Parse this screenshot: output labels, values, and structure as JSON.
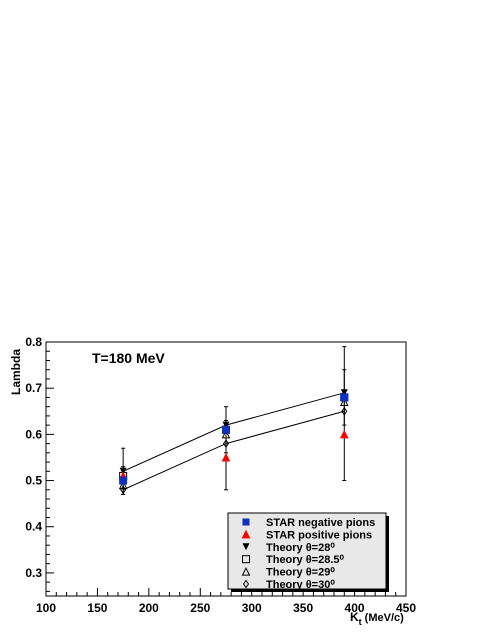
{
  "chart_data": {
    "type": "scatter",
    "annotation": "T=180 MeV",
    "ylabel": "Lambda",
    "xlabel_main": "K",
    "xlabel_sub": "t",
    "xlabel_unit": "(MeV/c)",
    "xlim": [
      100,
      450
    ],
    "ylim": [
      0.25,
      0.8
    ],
    "xticks": [
      "100",
      "150",
      "200",
      "250",
      "300",
      "350",
      "400",
      "450"
    ],
    "yticks": [
      "0.3",
      "0.4",
      "0.5",
      "0.6",
      "0.7",
      "0.8"
    ],
    "series": [
      {
        "name": "STAR negative pions",
        "marker": "square-filled",
        "color": "#1030c0",
        "x": [
          175,
          275,
          390
        ],
        "y": [
          0.5,
          0.61,
          0.68
        ],
        "yerr": [
          [
            0.03,
            0.05,
            0.06
          ],
          [
            0.03,
            0.05,
            0.06
          ]
        ]
      },
      {
        "name": "STAR positive pions",
        "marker": "triangle-up-filled",
        "color": "#ff0000",
        "x": [
          175,
          275,
          390
        ],
        "y": [
          0.51,
          0.55,
          0.6
        ],
        "yerr": [
          [
            0.04,
            0.07,
            0.1
          ],
          [
            0.06,
            0.08,
            0.19
          ]
        ]
      },
      {
        "name": "Theory θ=28⁰",
        "marker": "triangle-down-filled",
        "color": "#000000",
        "x": [
          175,
          275,
          390
        ],
        "y": [
          0.52,
          0.62,
          0.69
        ],
        "line": true
      },
      {
        "name": "Theory θ=28.5⁰",
        "marker": "square-open",
        "color": "#000000",
        "x": [
          175,
          275,
          390
        ],
        "y": [
          0.51,
          0.61,
          0.68
        ]
      },
      {
        "name": "Theory θ=29⁰",
        "marker": "triangle-up-open",
        "color": "#000000",
        "x": [
          175,
          275,
          390
        ],
        "y": [
          0.49,
          0.6,
          0.67
        ]
      },
      {
        "name": "Theory θ=30⁰",
        "marker": "diamond-open",
        "color": "#000000",
        "x": [
          175,
          275,
          390
        ],
        "y": [
          0.48,
          0.58,
          0.65
        ],
        "line": true
      }
    ],
    "legend_position": "bottom-right",
    "grid": false
  }
}
